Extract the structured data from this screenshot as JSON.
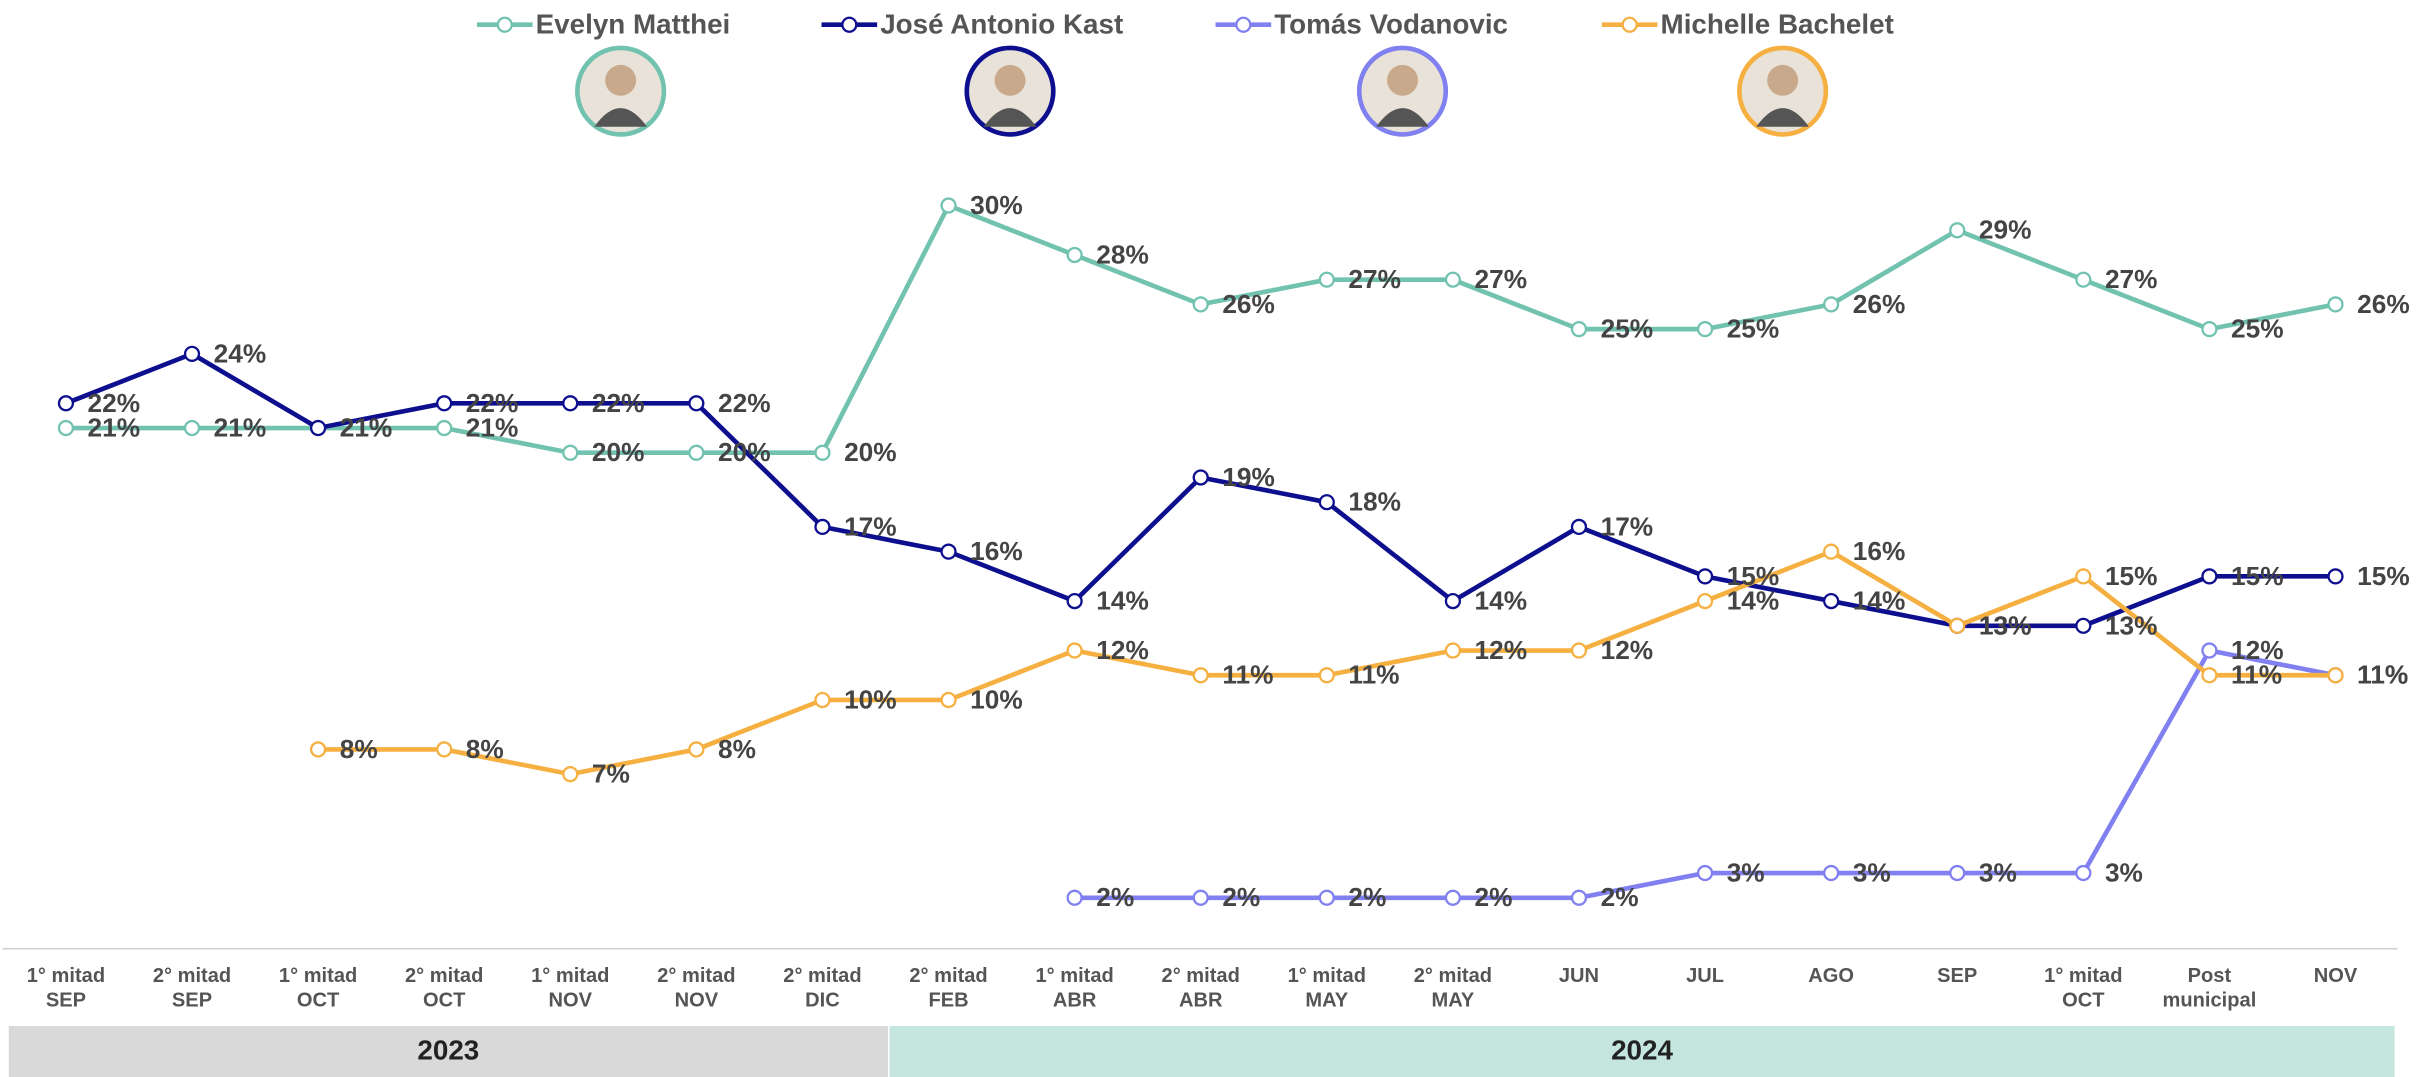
{
  "chart_data": {
    "type": "line",
    "categories": [
      [
        "1° mitad",
        "SEP"
      ],
      [
        "2° mitad",
        "SEP"
      ],
      [
        "1° mitad",
        "OCT"
      ],
      [
        "2° mitad",
        "OCT"
      ],
      [
        "1° mitad",
        "NOV"
      ],
      [
        "2° mitad",
        "NOV"
      ],
      [
        "2° mitad",
        "DIC"
      ],
      [
        "2° mitad",
        "FEB"
      ],
      [
        "1° mitad",
        "ABR"
      ],
      [
        "2° mitad",
        "ABR"
      ],
      [
        "1° mitad",
        "MAY"
      ],
      [
        "2° mitad",
        "MAY"
      ],
      [
        "JUN"
      ],
      [
        "JUL"
      ],
      [
        "AGO"
      ],
      [
        "SEP"
      ],
      [
        "1° mitad",
        "OCT"
      ],
      [
        "Post",
        "municipal"
      ],
      [
        "NOV"
      ]
    ],
    "ylim": [
      0,
      30
    ],
    "series": [
      {
        "name": "Evelyn Matthei",
        "color": "#72c2b0",
        "values": [
          21,
          21,
          21,
          21,
          20,
          20,
          20,
          30,
          28,
          26,
          27,
          27,
          25,
          25,
          26,
          29,
          27,
          25,
          26
        ],
        "value_labels": [
          "21%",
          "21%",
          "21%",
          "21%",
          "20%",
          "20%",
          "20%",
          "30%",
          "28%",
          "26%",
          "27%",
          "27%",
          "25%",
          "25%",
          "26%",
          "29%",
          "27%",
          "25%",
          "26%"
        ]
      },
      {
        "name": "José Antonio Kast",
        "color": "#0d0f8f",
        "values": [
          22,
          24,
          21,
          22,
          22,
          22,
          17,
          16,
          14,
          19,
          18,
          14,
          17,
          15,
          14,
          13,
          13,
          15,
          15
        ],
        "value_labels": [
          "22%",
          "24%",
          "21%",
          "22%",
          "22%",
          "22%",
          "17%",
          "16%",
          "14%",
          "19%",
          "18%",
          "14%",
          "17%",
          "15%",
          "14%",
          "13%",
          "13%",
          "15%",
          "15%"
        ]
      },
      {
        "name": "Tomás Vodanovic",
        "color": "#8080f0",
        "values": [
          null,
          null,
          null,
          null,
          null,
          null,
          null,
          null,
          2,
          2,
          2,
          2,
          2,
          3,
          3,
          3,
          3,
          12,
          11
        ],
        "value_labels": [
          null,
          null,
          null,
          null,
          null,
          null,
          null,
          null,
          "2%",
          "2%",
          "2%",
          "2%",
          "2%",
          "3%",
          "3%",
          "3%",
          "3%",
          "12%",
          "11%"
        ]
      },
      {
        "name": "Michelle Bachelet",
        "color": "#f5b041",
        "values": [
          null,
          null,
          8,
          8,
          7,
          8,
          10,
          10,
          12,
          11,
          11,
          12,
          12,
          14,
          16,
          13,
          15,
          11,
          11
        ],
        "value_labels": [
          null,
          null,
          "8%",
          "8%",
          "7%",
          "8%",
          "10%",
          "10%",
          "12%",
          "11%",
          "11%",
          "12%",
          "12%",
          "14%",
          "16%",
          "13%",
          "15%",
          "11%",
          "11%"
        ]
      }
    ],
    "periods": [
      {
        "label": "2023",
        "color": "#d9d9d9"
      },
      {
        "label": "2024",
        "color": "#c5e6df"
      }
    ]
  }
}
